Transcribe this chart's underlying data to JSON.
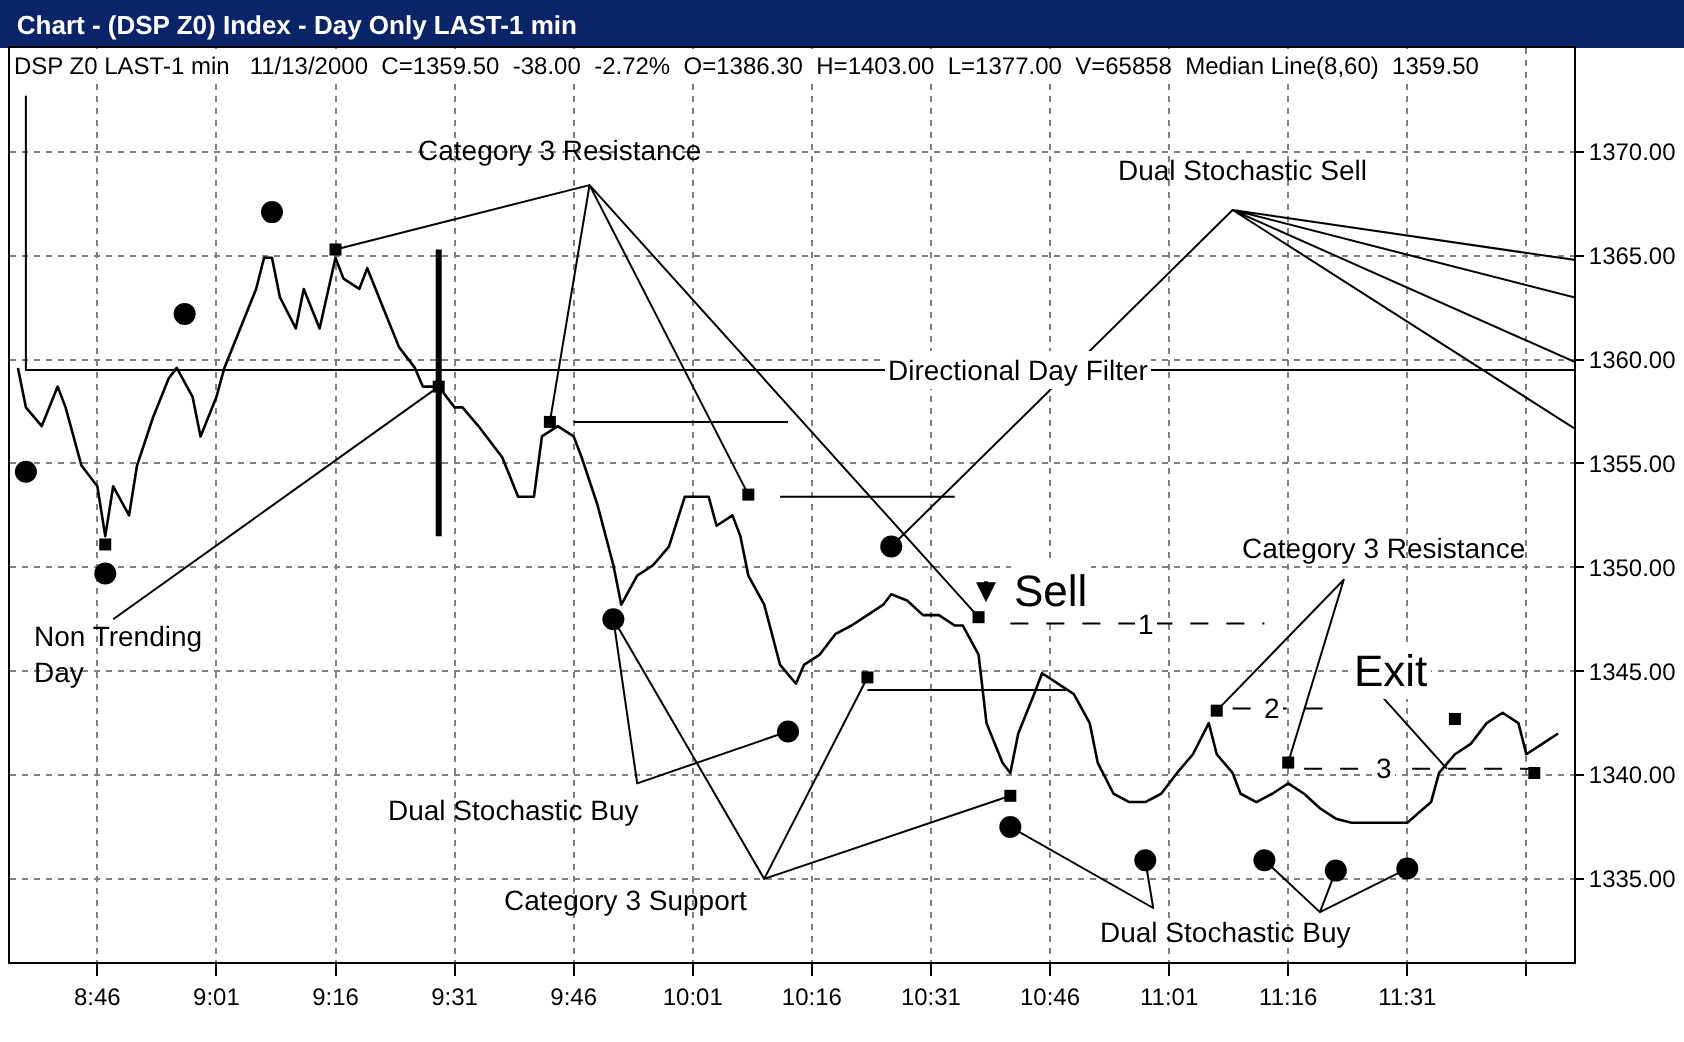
{
  "chart_data": {
    "type": "line",
    "title": "Chart - (DSP Z0) Index - Day Only LAST-1 min",
    "subtitle": "DSP Z0 LAST-1 min   11/13/2000  C=1359.50  -38.00  -2.72%  O=1386.30  H=1403.00  L=1377.00  V=65858  Median Line(8,60)  1359.50",
    "xlim": [
      "2000-11-13T08:35",
      "2000-11-13T11:52"
    ],
    "xticks": [
      {
        "value": "2000-11-13T08:46",
        "label": "8:46"
      },
      {
        "value": "2000-11-13T09:01",
        "label": "9:01"
      },
      {
        "value": "2000-11-13T09:16",
        "label": "9:16"
      },
      {
        "value": "2000-11-13T09:31",
        "label": "9:31"
      },
      {
        "value": "2000-11-13T09:46",
        "label": "9:46"
      },
      {
        "value": "2000-11-13T10:01",
        "label": "10:01"
      },
      {
        "value": "2000-11-13T10:16",
        "label": "10:16"
      },
      {
        "value": "2000-11-13T10:31",
        "label": "10:31"
      },
      {
        "value": "2000-11-13T10:46",
        "label": "10:46"
      },
      {
        "value": "2000-11-13T11:01",
        "label": "11:01"
      },
      {
        "value": "2000-11-13T11:16",
        "label": "11:16"
      },
      {
        "value": "2000-11-13T11:31",
        "label": "11:31"
      },
      {
        "value": "2000-11-13T11:46",
        "label": null
      }
    ],
    "ylim": [
      1331,
      1375
    ],
    "yticks": [
      {
        "value": 1335,
        "label": "1335.00"
      },
      {
        "value": 1340,
        "label": "1340.00"
      },
      {
        "value": 1345,
        "label": "1345.00"
      },
      {
        "value": 1350,
        "label": "1350.00"
      },
      {
        "value": 1355,
        "label": "1355.00"
      },
      {
        "value": 1360,
        "label": "1360.00"
      },
      {
        "value": 1365,
        "label": "1365.00"
      },
      {
        "value": 1370,
        "label": "1370.00"
      }
    ],
    "grid": true,
    "series": [
      {
        "color": "#000000",
        "x": [
          "2000-11-13T08:36",
          "2000-11-13T08:37",
          "2000-11-13T08:39",
          "2000-11-13T08:41",
          "2000-11-13T08:42",
          "2000-11-13T08:44",
          "2000-11-13T08:46",
          "2000-11-13T08:47",
          "2000-11-13T08:48",
          "2000-11-13T08:50",
          "2000-11-13T08:51",
          "2000-11-13T08:53",
          "2000-11-13T08:55",
          "2000-11-13T08:56",
          "2000-11-13T08:58",
          "2000-11-13T08:59",
          "2000-11-13T09:01",
          "2000-11-13T09:02",
          "2000-11-13T09:04",
          "2000-11-13T09:06",
          "2000-11-13T09:07",
          "2000-11-13T09:08",
          "2000-11-13T09:09",
          "2000-11-13T09:11",
          "2000-11-13T09:12",
          "2000-11-13T09:14",
          "2000-11-13T09:16",
          "2000-11-13T09:17",
          "2000-11-13T09:19",
          "2000-11-13T09:20",
          "2000-11-13T09:22",
          "2000-11-13T09:24",
          "2000-11-13T09:26",
          "2000-11-13T09:27",
          "2000-11-13T09:29",
          "2000-11-13T09:31",
          "2000-11-13T09:32",
          "2000-11-13T09:34",
          "2000-11-13T09:37",
          "2000-11-13T09:39",
          "2000-11-13T09:41",
          "2000-11-13T09:42",
          "2000-11-13T09:44",
          "2000-11-13T09:46",
          "2000-11-13T09:47",
          "2000-11-13T09:49",
          "2000-11-13T09:51",
          "2000-11-13T09:52",
          "2000-11-13T09:54",
          "2000-11-13T09:56",
          "2000-11-13T09:58",
          "2000-11-13T10:00",
          "2000-11-13T10:03",
          "2000-11-13T10:04",
          "2000-11-13T10:06",
          "2000-11-13T10:07",
          "2000-11-13T10:08",
          "2000-11-13T10:10",
          "2000-11-13T10:12",
          "2000-11-13T10:14",
          "2000-11-13T10:15",
          "2000-11-13T10:17",
          "2000-11-13T10:19",
          "2000-11-13T10:21",
          "2000-11-13T10:23",
          "2000-11-13T10:25",
          "2000-11-13T10:26",
          "2000-11-13T10:28",
          "2000-11-13T10:30",
          "2000-11-13T10:32",
          "2000-11-13T10:34",
          "2000-11-13T10:35",
          "2000-11-13T10:37",
          "2000-11-13T10:38",
          "2000-11-13T10:40",
          "2000-11-13T10:41",
          "2000-11-13T10:42",
          "2000-11-13T10:44",
          "2000-11-13T10:45",
          "2000-11-13T10:47",
          "2000-11-13T10:49",
          "2000-11-13T10:51",
          "2000-11-13T10:52",
          "2000-11-13T10:54",
          "2000-11-13T10:56",
          "2000-11-13T10:58",
          "2000-11-13T11:00",
          "2000-11-13T11:02",
          "2000-11-13T11:04",
          "2000-11-13T11:06",
          "2000-11-13T11:07",
          "2000-11-13T11:09",
          "2000-11-13T11:10",
          "2000-11-13T11:12",
          "2000-11-13T11:14",
          "2000-11-13T11:16",
          "2000-11-13T11:18",
          "2000-11-13T11:20",
          "2000-11-13T11:22",
          "2000-11-13T11:24",
          "2000-11-13T11:28",
          "2000-11-13T11:31",
          "2000-11-13T11:34",
          "2000-11-13T11:35",
          "2000-11-13T11:37",
          "2000-11-13T11:39",
          "2000-11-13T11:41",
          "2000-11-13T11:43",
          "2000-11-13T11:45",
          "2000-11-13T11:46",
          "2000-11-13T11:48",
          "2000-11-13T11:50"
        ],
        "values": [
          1359.6,
          1357.7,
          1356.8,
          1358.7,
          1357.7,
          1354.9,
          1353.9,
          1351.5,
          1353.9,
          1352.5,
          1354.9,
          1357.2,
          1359.1,
          1359.6,
          1358.2,
          1356.3,
          1358.2,
          1359.6,
          1361.5,
          1363.4,
          1364.9,
          1364.9,
          1363.0,
          1361.5,
          1363.4,
          1361.5,
          1364.9,
          1363.9,
          1363.4,
          1364.4,
          1362.5,
          1360.6,
          1359.6,
          1358.7,
          1358.7,
          1357.7,
          1357.7,
          1356.8,
          1355.3,
          1353.4,
          1353.4,
          1356.3,
          1356.8,
          1356.3,
          1355.3,
          1353.0,
          1350.1,
          1348.2,
          1349.6,
          1350.1,
          1351.0,
          1353.4,
          1353.4,
          1352.0,
          1352.5,
          1351.5,
          1349.6,
          1348.2,
          1345.3,
          1344.4,
          1345.3,
          1345.8,
          1346.8,
          1347.2,
          1347.7,
          1348.2,
          1348.7,
          1348.4,
          1347.7,
          1347.7,
          1347.2,
          1347.2,
          1345.8,
          1342.5,
          1340.6,
          1340.1,
          1342.0,
          1343.9,
          1344.9,
          1344.4,
          1343.9,
          1342.5,
          1340.6,
          1339.1,
          1338.7,
          1338.7,
          1339.1,
          1340.1,
          1341.0,
          1342.5,
          1341.0,
          1340.1,
          1339.1,
          1338.7,
          1339.1,
          1339.6,
          1339.1,
          1338.4,
          1337.9,
          1337.7,
          1337.7,
          1337.7,
          1338.7,
          1340.1,
          1341.0,
          1341.5,
          1342.5,
          1343.0,
          1342.5,
          1341.0,
          1341.5,
          1342.0
        ]
      },
      {
        "type": "line",
        "color": "#000000",
        "x": [
          "2000-11-13T08:37",
          "2000-11-13T08:37",
          "2000-11-13T11:52"
        ],
        "values": [
          1372.7,
          1359.5,
          1359.5
        ]
      },
      {
        "type": "line",
        "color": "#000000",
        "x": [
          "2000-11-13T09:29",
          "2000-11-13T09:29"
        ],
        "values": [
          1365.3,
          1351.5
        ]
      },
      {
        "color": "#000000",
        "x": [
          "2000-11-13T09:46",
          "2000-11-13T10:13"
        ],
        "values": [
          1357.0,
          1357.0
        ]
      },
      {
        "color": "#000000",
        "x": [
          "2000-11-13T10:12",
          "2000-11-13T10:34"
        ],
        "values": [
          1353.4,
          1353.4
        ]
      },
      {
        "color": "#000000",
        "x": [
          "2000-11-13T10:23",
          "2000-11-13T10:48"
        ],
        "values": [
          1344.1,
          1344.1
        ]
      },
      {
        "color": "#000000",
        "line_style": "dashed",
        "x": [
          "2000-11-13T10:41",
          "2000-11-13T11:13"
        ],
        "values": [
          1347.3,
          1347.3
        ]
      },
      {
        "color": "#000000",
        "line_style": "dashed",
        "x": [
          "2000-11-13T11:09",
          "2000-11-13T11:21"
        ],
        "values": [
          1343.2,
          1343.2
        ]
      },
      {
        "color": "#000000",
        "line_style": "dashed",
        "x": [
          "2000-11-13T11:18",
          "2000-11-13T11:47"
        ],
        "values": [
          1340.3,
          1340.3
        ]
      },
      {
        "color": "#000000",
        "x": [
          "2000-11-13T09:16",
          "2000-11-13T09:48",
          "2000-11-13T09:43",
          "2000-11-13T09:48",
          "2000-11-13T10:08",
          "2000-11-13T09:48",
          "2000-11-13T10:37"
        ],
        "values": [
          1365.3,
          1368.4,
          1357.0,
          1368.4,
          1353.5,
          1368.4,
          1347.6
        ]
      },
      {
        "color": "#000000",
        "x": [
          "2000-11-13T08:48",
          "2000-11-13T09:29"
        ],
        "values": [
          1347.5,
          1358.7
        ]
      },
      {
        "color": "#000000",
        "x": [
          "2000-11-13T10:26",
          "2000-11-13T11:09",
          "2000-11-13T11:52",
          "2000-11-13T11:09",
          "2000-11-13T11:52",
          "2000-11-13T11:09",
          "2000-11-13T11:52",
          "2000-11-13T11:09",
          "2000-11-13T11:52"
        ],
        "values": [
          1351.0,
          1367.2,
          1364.8,
          1367.2,
          1363.0,
          1367.2,
          1359.9,
          1367.2,
          1356.7
        ]
      },
      {
        "color": "#000000",
        "x": [
          "2000-11-13T09:51",
          "2000-11-13T09:54",
          "2000-11-13T10:13"
        ],
        "values": [
          1347.5,
          1339.6,
          1342.1
        ]
      },
      {
        "color": "#000000",
        "x": [
          "2000-11-13T09:51",
          "2000-11-13T10:10",
          "2000-11-13T10:23",
          "2000-11-13T10:10",
          "2000-11-13T10:41"
        ],
        "values": [
          1347.5,
          1335.0,
          1344.7,
          1335.0,
          1339.0
        ]
      },
      {
        "color": "#000000",
        "x": [
          "2000-11-13T10:41",
          "2000-11-13T10:59",
          "2000-11-13T10:58"
        ],
        "values": [
          1337.5,
          1333.6,
          1335.9
        ]
      },
      {
        "color": "#000000",
        "x": [
          "2000-11-13T11:13",
          "2000-11-13T11:20",
          "2000-11-13T11:22",
          "2000-11-13T11:20",
          "2000-11-13T11:31"
        ],
        "values": [
          1335.9,
          1333.4,
          1335.4,
          1333.4,
          1335.5
        ]
      },
      {
        "color": "#000000",
        "x": [
          "2000-11-13T11:07",
          "2000-11-13T11:23",
          "2000-11-13T11:16"
        ],
        "values": [
          1343.1,
          1349.4,
          1340.6
        ]
      },
      {
        "color": "#000000",
        "x": [
          "2000-11-13T11:28",
          "2000-11-13T11:36"
        ],
        "values": [
          1343.7,
          1340.3
        ]
      },
      {
        "type": "scatter",
        "marker": "circle",
        "color": "#000000",
        "x": [
          "2000-11-13T08:37",
          "2000-11-13T08:47",
          "2000-11-13T08:57",
          "2000-11-13T09:08",
          "2000-11-13T09:51",
          "2000-11-13T10:13",
          "2000-11-13T10:26",
          "2000-11-13T10:41",
          "2000-11-13T10:58",
          "2000-11-13T11:13",
          "2000-11-13T11:22",
          "2000-11-13T11:31"
        ],
        "values": [
          1354.6,
          1349.7,
          1362.2,
          1367.1,
          1347.5,
          1342.1,
          1351.0,
          1337.5,
          1335.9,
          1335.9,
          1335.4,
          1335.5
        ]
      },
      {
        "type": "scatter",
        "marker": "square",
        "color": "#000000",
        "x": [
          "2000-11-13T08:47",
          "2000-11-13T09:16",
          "2000-11-13T09:29",
          "2000-11-13T09:43",
          "2000-11-13T10:08",
          "2000-11-13T10:23",
          "2000-11-13T10:37",
          "2000-11-13T10:41",
          "2000-11-13T11:07",
          "2000-11-13T11:16",
          "2000-11-13T11:37",
          "2000-11-13T11:47"
        ],
        "values": [
          1351.1,
          1365.3,
          1358.7,
          1357.0,
          1353.5,
          1344.7,
          1347.6,
          1339.0,
          1343.1,
          1340.6,
          1342.7,
          1340.1
        ]
      }
    ],
    "annotations": [
      "Category 3 Resistance",
      "Dual Stochastic Sell",
      {
        "text": "Directional Day Filter",
        "x": "2000-11-13T10:42",
        "y": 1359.5
      },
      "Non Trending\nDay",
      "Dual Stochastic Buy",
      "Category 3 Support",
      {
        "text": "Sell",
        "x": "2000-11-13T10:46",
        "y": 1348.9
      },
      {
        "text": "1",
        "x": "2000-11-13T10:58",
        "y": 1347.3
      },
      {
        "text": "2",
        "x": "2000-11-13T11:14",
        "y": 1343.2
      },
      {
        "text": "3",
        "x": "2000-11-13T11:28",
        "y": 1340.3
      },
      "Category 3 Resistance",
      {
        "text": "Exit",
        "x": "2000-11-13T11:29",
        "y": 1345.0
      },
      "Dual Stochastic Buy"
    ]
  }
}
